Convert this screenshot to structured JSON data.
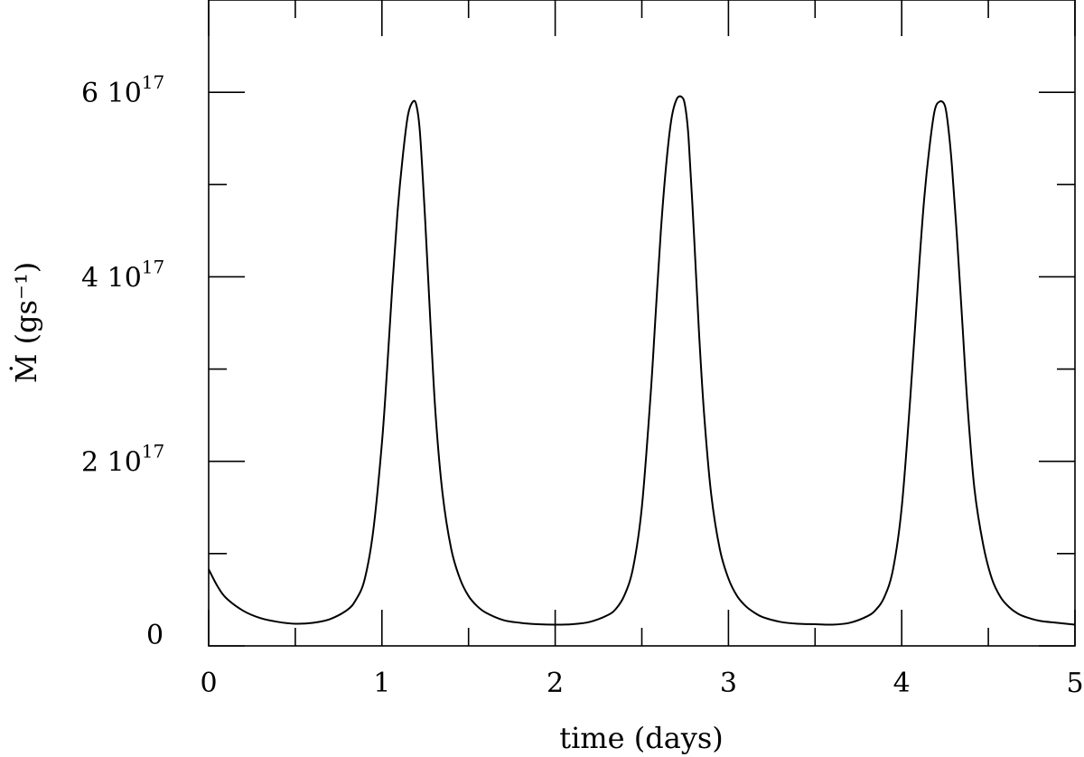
{
  "chart_data": {
    "type": "line",
    "title": "",
    "xlabel": "time (days)",
    "ylabel": "Ṁ (gs⁻¹)",
    "xlim": [
      0,
      5
    ],
    "ylim": [
      0,
      7e+17
    ],
    "x_ticks": [
      {
        "value": 0,
        "label": "0"
      },
      {
        "value": 1,
        "label": "1"
      },
      {
        "value": 2,
        "label": "2"
      },
      {
        "value": 3,
        "label": "3"
      },
      {
        "value": 4,
        "label": "4"
      },
      {
        "value": 5,
        "label": "5"
      }
    ],
    "x_minor_ticks": [
      0.5,
      1.5,
      2.5,
      3.5,
      4.5
    ],
    "y_ticks": [
      {
        "value": 0,
        "label": "0"
      },
      {
        "value": 2e+17,
        "label": "2 10",
        "exp": "17"
      },
      {
        "value": 4e+17,
        "label": "4 10",
        "exp": "17"
      },
      {
        "value": 6e+17,
        "label": "6 10",
        "exp": "17"
      }
    ],
    "y_minor_ticks": [
      1e+17,
      3e+17,
      5e+17
    ],
    "grid": false,
    "series": [
      {
        "x": [
          0,
          0.05,
          0.1,
          0.2,
          0.3,
          0.4,
          0.5,
          0.6,
          0.7,
          0.8,
          0.85,
          0.9,
          0.95,
          1.0,
          1.03,
          1.06,
          1.09,
          1.12,
          1.15,
          1.18,
          1.2,
          1.22,
          1.25,
          1.28,
          1.31,
          1.35,
          1.4,
          1.45,
          1.5,
          1.55,
          1.6,
          1.7,
          1.8,
          1.9,
          2.0,
          2.1,
          2.2,
          2.3,
          2.35,
          2.4,
          2.45,
          2.5,
          2.55,
          2.58,
          2.61,
          2.64,
          2.67,
          2.7,
          2.73,
          2.75,
          2.77,
          2.8,
          2.83,
          2.86,
          2.9,
          2.95,
          3.0,
          3.05,
          3.1,
          3.15,
          3.2,
          3.3,
          3.4,
          3.5,
          3.6,
          3.7,
          3.8,
          3.85,
          3.9,
          3.95,
          4.0,
          4.05,
          4.1,
          4.13,
          4.16,
          4.19,
          4.22,
          4.25,
          4.27,
          4.29,
          4.32,
          4.35,
          4.38,
          4.42,
          4.47,
          4.52,
          4.57,
          4.62,
          4.67,
          4.72,
          4.8,
          4.9,
          5.0
        ],
        "y": [
          8.3e+16,
          6.5e+16,
          5.2e+16,
          3.8e+16,
          3e+16,
          2.6e+16,
          2.4e+16,
          2.5e+16,
          2.9e+16,
          3.9e+16,
          5e+16,
          7.2e+16,
          1.25e+17,
          2.2e+17,
          3e+17,
          3.9e+17,
          4.7e+17,
          5.3e+17,
          5.75e+17,
          5.9e+17,
          5.85e+17,
          5.55e+17,
          4.6e+17,
          3.5e+17,
          2.5e+17,
          1.65e+17,
          1.05e+17,
          7.3e+16,
          5.4e+16,
          4.3e+16,
          3.6e+16,
          2.8e+16,
          2.5e+16,
          2.35e+16,
          2.3e+16,
          2.35e+16,
          2.6e+16,
          3.3e+16,
          4e+16,
          5.5e+16,
          8.5e+16,
          1.5e+17,
          2.7e+17,
          3.6e+17,
          4.5e+17,
          5.2e+17,
          5.7e+17,
          5.92e+17,
          5.95e+17,
          5.85e+17,
          5.5e+17,
          4.5e+17,
          3.4e+17,
          2.5e+17,
          1.65e+17,
          1.05e+17,
          7.3e+16,
          5.4e+16,
          4.3e+16,
          3.6e+16,
          3.1e+16,
          2.6e+16,
          2.4e+16,
          2.35e+16,
          2.3e+16,
          2.5e+16,
          3.2e+16,
          3.9e+16,
          5.3e+16,
          8.3e+16,
          1.5e+17,
          2.7e+17,
          4.1e+17,
          4.85e+17,
          5.4e+17,
          5.8e+17,
          5.9e+17,
          5.85e+17,
          5.6e+17,
          5.2e+17,
          4.4e+17,
          3.5e+17,
          2.6e+17,
          1.7e+17,
          1.1e+17,
          7.3e+16,
          5.3e+16,
          4.2e+16,
          3.5e+16,
          3.1e+16,
          2.7e+16,
          2.5e+16,
          2.3e+16
        ]
      }
    ]
  }
}
